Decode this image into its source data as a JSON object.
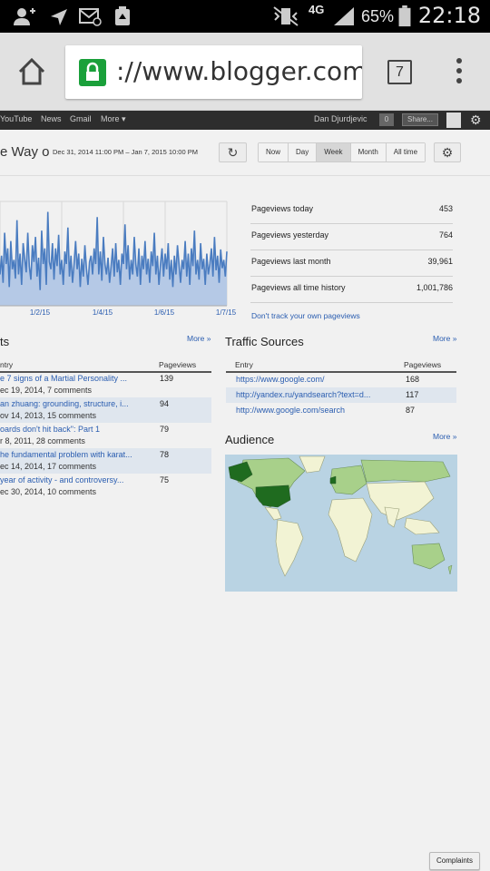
{
  "status_bar": {
    "network": "4G",
    "battery": "65%",
    "time": "22:18"
  },
  "browser": {
    "url": "://www.blogger.com/b",
    "tab_count": "7"
  },
  "google_bar": {
    "links": [
      "YouTube",
      "News",
      "Gmail",
      "More ▾"
    ],
    "user_name": "Dan Djurdjevic",
    "notification_count": "0",
    "share_label": "Share..."
  },
  "header": {
    "title": "e Way o",
    "date_range": "Dec 31, 2014 11:00 PM – Jan 7, 2015 10:00 PM",
    "ranges": [
      "Now",
      "Day",
      "Week",
      "Month",
      "All time"
    ],
    "active_range": "Week"
  },
  "chart_data": {
    "type": "area",
    "x_tick_labels": [
      "1/2/15",
      "1/4/15",
      "1/6/15",
      "1/7/15"
    ],
    "values": [
      30,
      48,
      22,
      70,
      40,
      55,
      18,
      62,
      35,
      44,
      26,
      82,
      30,
      50,
      20,
      60,
      45,
      32,
      70,
      38,
      25,
      58,
      42,
      66,
      28,
      46,
      15,
      72,
      40,
      55,
      20,
      90,
      42,
      35,
      60,
      25,
      55,
      38,
      68,
      30,
      44,
      20,
      52,
      40,
      75,
      28,
      48,
      22,
      40,
      62,
      35,
      50,
      18,
      45,
      28,
      58,
      36,
      20,
      42,
      48,
      30,
      55,
      40,
      85,
      30,
      52,
      24,
      66,
      40,
      30,
      46,
      22,
      38,
      55,
      28,
      60,
      32,
      44,
      20,
      50,
      40,
      78,
      35,
      58,
      25,
      44,
      30,
      66,
      40,
      28,
      55,
      20,
      48,
      35,
      62,
      30,
      45,
      22,
      52,
      38,
      70,
      30,
      48,
      20,
      40,
      55,
      28,
      50,
      35,
      60,
      25,
      44,
      18,
      48,
      30,
      58,
      40,
      22,
      44,
      35,
      62,
      28,
      50,
      20,
      55,
      38,
      72,
      30,
      44,
      25,
      60,
      35,
      45,
      20,
      50,
      30,
      40,
      55,
      28,
      66,
      34,
      48,
      22,
      54,
      36,
      44,
      28,
      52
    ],
    "y_max": 100,
    "colors": {
      "line": "#4a7cc0",
      "fill": "#b5c9e6",
      "grid": "#d8d8d8"
    }
  },
  "stats": [
    {
      "label": "Pageviews today",
      "value": "453"
    },
    {
      "label": "Pageviews yesterday",
      "value": "764"
    },
    {
      "label": "Pageviews last month",
      "value": "39,961"
    },
    {
      "label": "Pageviews all time history",
      "value": "1,001,786"
    }
  ],
  "dont_track": "Don't track your own pageviews",
  "posts": {
    "title": "ts",
    "more": "More »",
    "col_entry": "ntry",
    "col_views": "Pageviews",
    "rows": [
      {
        "title": "e 7 signs of a Martial Personality ...",
        "meta": "ec 19, 2014, 7 comments",
        "views": "139"
      },
      {
        "title": "an zhuang: grounding, structure, i...",
        "meta": "ov 14, 2013, 15 comments",
        "views": "94"
      },
      {
        "title": "oards don't hit back\": Part 1",
        "meta": "r 8, 2011, 28 comments",
        "views": "79"
      },
      {
        "title": "he fundamental problem with karat...",
        "meta": "ec 14, 2014, 17 comments",
        "views": "78"
      },
      {
        "title": "year of activity - and controversy...",
        "meta": "ec 30, 2014, 10 comments",
        "views": "75"
      }
    ]
  },
  "traffic": {
    "title": "Traffic Sources",
    "more": "More »",
    "col_entry": "Entry",
    "col_views": "Pageviews",
    "rows": [
      {
        "url": "https://www.google.com/",
        "views": "168"
      },
      {
        "url": "http://yandex.ru/yandsearch?text=d...",
        "views": "117"
      },
      {
        "url": "http://www.google.com/search",
        "views": "87"
      }
    ]
  },
  "audience": {
    "title": "Audience",
    "more": "More »",
    "colors": {
      "ocean": "#b9d3e3",
      "low": "#f2f3d4",
      "mid": "#a8d08a",
      "high": "#1f6b1f"
    }
  },
  "complaints": "Complaints"
}
